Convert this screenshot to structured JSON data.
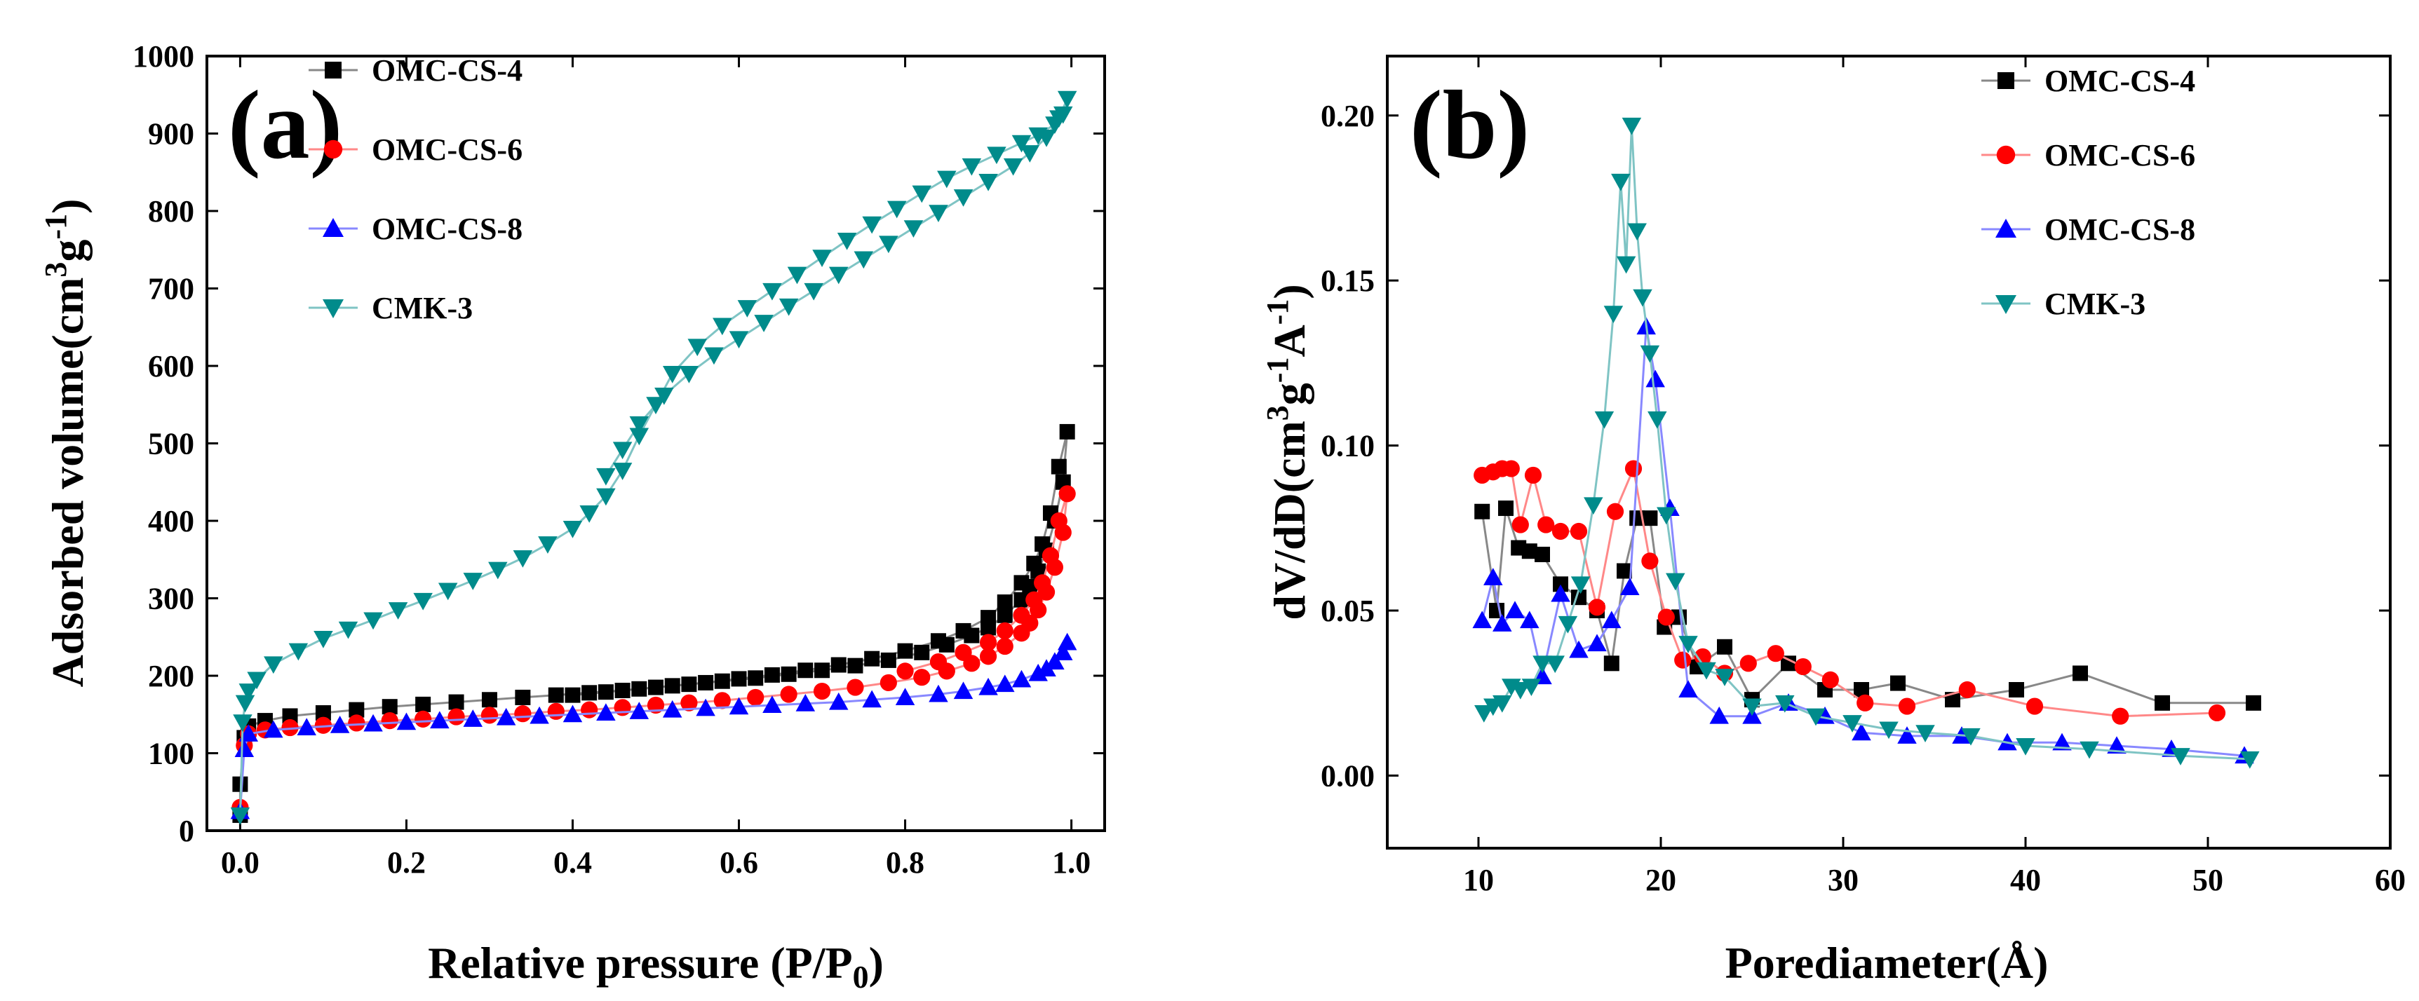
{
  "chart_data": [
    {
      "id": "a",
      "type": "scatter",
      "panel_label": "(a)",
      "xlabel": "Relative pressure (P/P",
      "xlabel_sub": "0",
      "xlabel_tail": ")",
      "ylabel": "Adsorbed volume(cm",
      "ylabel_sup1": "3",
      "ylabel_mid": "g",
      "ylabel_sup2": "-1",
      "ylabel_tail": ")",
      "xlim": [
        -0.04,
        1.04
      ],
      "ylim": [
        0,
        1000
      ],
      "xticks": [
        "0.0",
        "0.2",
        "0.4",
        "0.6",
        "0.8",
        "1.0"
      ],
      "xtick_values": [
        0.0,
        0.2,
        0.4,
        0.6,
        0.8,
        1.0
      ],
      "yticks": [
        "0",
        "100",
        "200",
        "300",
        "400",
        "500",
        "600",
        "700",
        "800",
        "900",
        "1000"
      ],
      "ytick_values": [
        0,
        100,
        200,
        300,
        400,
        500,
        600,
        700,
        800,
        900,
        1000
      ],
      "legend_position": "top-left",
      "series": [
        {
          "name": "OMC-CS-4",
          "marker": "square",
          "color": "#000000",
          "line_color": "#888888",
          "x": [
            0.0,
            0.0,
            0.005,
            0.01,
            0.03,
            0.06,
            0.1,
            0.14,
            0.18,
            0.22,
            0.26,
            0.3,
            0.34,
            0.38,
            0.42,
            0.46,
            0.5,
            0.54,
            0.58,
            0.62,
            0.66,
            0.7,
            0.74,
            0.78,
            0.82,
            0.85,
            0.88,
            0.9,
            0.92,
            0.94,
            0.95,
            0.96,
            0.97,
            0.98,
            0.99,
            0.995,
            0.985,
            0.975,
            0.965,
            0.955,
            0.94,
            0.92,
            0.9,
            0.87,
            0.84,
            0.8,
            0.76,
            0.72,
            0.68,
            0.64,
            0.6,
            0.56,
            0.52,
            0.48,
            0.44,
            0.4
          ],
          "y": [
            20,
            60,
            120,
            135,
            142,
            148,
            152,
            156,
            160,
            163,
            166,
            169,
            172,
            175,
            178,
            181,
            185,
            189,
            193,
            197,
            202,
            207,
            213,
            220,
            230,
            240,
            252,
            262,
            278,
            298,
            315,
            335,
            362,
            400,
            450,
            515,
            470,
            410,
            370,
            345,
            320,
            295,
            275,
            258,
            245,
            232,
            222,
            214,
            207,
            201,
            196,
            191,
            187,
            183,
            179,
            175
          ]
        },
        {
          "name": "OMC-CS-6",
          "marker": "circle",
          "color": "#ff0000",
          "line_color": "#ff8888",
          "x": [
            0.0,
            0.005,
            0.01,
            0.03,
            0.06,
            0.1,
            0.14,
            0.18,
            0.22,
            0.26,
            0.3,
            0.34,
            0.38,
            0.42,
            0.46,
            0.5,
            0.54,
            0.58,
            0.62,
            0.66,
            0.7,
            0.74,
            0.78,
            0.82,
            0.85,
            0.88,
            0.9,
            0.92,
            0.94,
            0.95,
            0.96,
            0.97,
            0.98,
            0.99,
            0.995,
            0.985,
            0.975,
            0.965,
            0.955,
            0.94,
            0.92,
            0.9,
            0.87,
            0.84,
            0.8
          ],
          "y": [
            30,
            110,
            125,
            130,
            133,
            136,
            139,
            142,
            144,
            147,
            149,
            151,
            154,
            156,
            159,
            162,
            165,
            168,
            172,
            176,
            180,
            185,
            191,
            198,
            206,
            216,
            225,
            238,
            255,
            268,
            285,
            308,
            340,
            385,
            435,
            400,
            355,
            320,
            298,
            278,
            258,
            243,
            230,
            218,
            206
          ]
        },
        {
          "name": "OMC-CS-8",
          "marker": "triangle-up",
          "color": "#0000ff",
          "line_color": "#8888ff",
          "x": [
            0.0,
            0.005,
            0.01,
            0.04,
            0.08,
            0.12,
            0.16,
            0.2,
            0.24,
            0.28,
            0.32,
            0.36,
            0.4,
            0.44,
            0.48,
            0.52,
            0.56,
            0.6,
            0.64,
            0.68,
            0.72,
            0.76,
            0.8,
            0.84,
            0.87,
            0.9,
            0.92,
            0.94,
            0.96,
            0.97,
            0.98,
            0.99,
            0.995
          ],
          "y": [
            25,
            105,
            125,
            130,
            133,
            136,
            138,
            140,
            142,
            144,
            146,
            148,
            150,
            152,
            154,
            156,
            158,
            160,
            162,
            164,
            166,
            169,
            172,
            176,
            180,
            185,
            189,
            195,
            203,
            209,
            218,
            230,
            243
          ]
        },
        {
          "name": "CMK-3",
          "marker": "triangle-down",
          "color": "#008b8b",
          "line_color": "#7fc4c4",
          "x": [
            0.0,
            0.003,
            0.006,
            0.01,
            0.02,
            0.04,
            0.07,
            0.1,
            0.13,
            0.16,
            0.19,
            0.22,
            0.25,
            0.28,
            0.31,
            0.34,
            0.37,
            0.4,
            0.42,
            0.44,
            0.46,
            0.48,
            0.5,
            0.52,
            0.55,
            0.58,
            0.61,
            0.64,
            0.67,
            0.7,
            0.73,
            0.76,
            0.79,
            0.82,
            0.85,
            0.88,
            0.91,
            0.94,
            0.96,
            0.98,
            0.99,
            0.995,
            0.985,
            0.97,
            0.95,
            0.93,
            0.9,
            0.87,
            0.84,
            0.81,
            0.78,
            0.75,
            0.72,
            0.69,
            0.66,
            0.63,
            0.6,
            0.57,
            0.54,
            0.51,
            0.48,
            0.46,
            0.44
          ],
          "y": [
            20,
            140,
            165,
            180,
            195,
            215,
            232,
            248,
            260,
            272,
            285,
            297,
            310,
            323,
            337,
            352,
            370,
            390,
            410,
            432,
            465,
            510,
            550,
            590,
            625,
            652,
            675,
            697,
            718,
            740,
            762,
            783,
            803,
            823,
            842,
            858,
            873,
            888,
            898,
            912,
            925,
            945,
            920,
            895,
            875,
            858,
            838,
            818,
            798,
            778,
            758,
            738,
            718,
            697,
            677,
            656,
            635,
            614,
            590,
            562,
            525,
            492,
            458
          ]
        }
      ]
    },
    {
      "id": "b",
      "type": "line",
      "panel_label": "(b)",
      "xlabel": "Porediameter(Å)",
      "ylabel": "dV/dD(cm",
      "ylabel_sup1": "3",
      "ylabel_mid1": "g",
      "ylabel_sup2": "-1",
      "ylabel_mid2": "A",
      "ylabel_sup3": "-1",
      "ylabel_tail": ")",
      "xlim": [
        5,
        60
      ],
      "ylim": [
        -0.022,
        0.218
      ],
      "xticks": [
        "10",
        "20",
        "30",
        "40",
        "50",
        "60"
      ],
      "xtick_values": [
        10,
        20,
        30,
        40,
        50,
        60
      ],
      "yticks": [
        "0.00",
        "0.05",
        "0.10",
        "0.15",
        "0.20"
      ],
      "ytick_values": [
        0.0,
        0.05,
        0.1,
        0.15,
        0.2
      ],
      "legend_position": "top-right",
      "series": [
        {
          "name": "OMC-CS-4",
          "marker": "square",
          "color": "#000000",
          "line_color": "#888888",
          "x": [
            10.2,
            11,
            11.5,
            12.2,
            12.8,
            13.5,
            14.5,
            15.5,
            16.5,
            17.3,
            18,
            18.7,
            19.4,
            20.2,
            21,
            22,
            23.5,
            25,
            27,
            29,
            31,
            33,
            36,
            39.5,
            43,
            47.5,
            52.5
          ],
          "y": [
            0.08,
            0.05,
            0.081,
            0.069,
            0.068,
            0.067,
            0.058,
            0.054,
            0.05,
            0.034,
            0.062,
            0.078,
            0.078,
            0.045,
            0.048,
            0.033,
            0.039,
            0.023,
            0.034,
            0.026,
            0.026,
            0.028,
            0.023,
            0.026,
            0.031,
            0.022,
            0.022
          ]
        },
        {
          "name": "OMC-CS-6",
          "marker": "circle",
          "color": "#ff0000",
          "line_color": "#ff8888",
          "x": [
            10.2,
            10.8,
            11.3,
            11.8,
            12.3,
            13,
            13.7,
            14.5,
            15.5,
            16.5,
            17.5,
            18.5,
            19.4,
            20.3,
            21.2,
            22.3,
            23.5,
            24.8,
            26.3,
            27.8,
            29.3,
            31.2,
            33.5,
            36.8,
            40.5,
            45.2,
            50.5
          ],
          "y": [
            0.091,
            0.092,
            0.093,
            0.093,
            0.076,
            0.091,
            0.076,
            0.074,
            0.074,
            0.051,
            0.08,
            0.093,
            0.065,
            0.048,
            0.035,
            0.036,
            0.031,
            0.034,
            0.037,
            0.033,
            0.029,
            0.022,
            0.021,
            0.026,
            0.021,
            0.018,
            0.019
          ]
        },
        {
          "name": "OMC-CS-8",
          "marker": "triangle-up",
          "color": "#0000ff",
          "line_color": "#8888ff",
          "x": [
            10.2,
            10.8,
            11.3,
            12,
            12.8,
            13.5,
            14.5,
            15.5,
            16.5,
            17.3,
            18.3,
            19.2,
            19.7,
            20.5,
            21.5,
            23.2,
            25,
            27,
            29,
            31,
            33.5,
            36.5,
            39,
            42,
            45,
            48,
            52
          ],
          "y": [
            0.047,
            0.06,
            0.046,
            0.05,
            0.047,
            0.03,
            0.055,
            0.038,
            0.04,
            0.047,
            0.057,
            0.136,
            0.12,
            0.081,
            0.026,
            0.018,
            0.018,
            0.022,
            0.018,
            0.013,
            0.012,
            0.012,
            0.01,
            0.01,
            0.009,
            0.008,
            0.006
          ]
        },
        {
          "name": "CMK-3",
          "marker": "triangle-down",
          "color": "#008b8b",
          "line_color": "#7fc4c4",
          "x": [
            10.3,
            10.8,
            11.3,
            11.8,
            12.3,
            12.9,
            13.5,
            14.2,
            14.9,
            15.6,
            16.3,
            16.9,
            17.4,
            17.8,
            18.1,
            18.4,
            18.7,
            19,
            19.4,
            19.8,
            20.3,
            20.8,
            21.5,
            22.5,
            23.5,
            25,
            26.8,
            28.5,
            30.5,
            32.5,
            34.5,
            37,
            40,
            43.5,
            48.5,
            52.3
          ],
          "y": [
            0.019,
            0.021,
            0.022,
            0.027,
            0.026,
            0.027,
            0.034,
            0.034,
            0.046,
            0.058,
            0.082,
            0.108,
            0.14,
            0.18,
            0.155,
            0.197,
            0.165,
            0.145,
            0.128,
            0.108,
            0.079,
            0.059,
            0.04,
            0.032,
            0.03,
            0.021,
            0.022,
            0.018,
            0.016,
            0.014,
            0.013,
            0.012,
            0.009,
            0.008,
            0.006,
            0.005
          ]
        }
      ]
    }
  ]
}
